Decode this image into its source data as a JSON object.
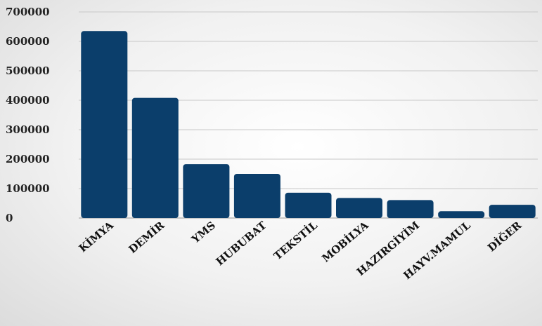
{
  "chart_data": {
    "type": "bar",
    "title": "",
    "xlabel": "",
    "ylabel": "",
    "categories": [
      "KİMYA",
      "DEMİR",
      "YMS",
      "HUBUBAT",
      "TEKSTİL",
      "MOBİLYA",
      "HAZIRGİYİM",
      "HAYV.MAMUL",
      "DİĞER"
    ],
    "values": [
      635000,
      408000,
      183000,
      150000,
      86000,
      68000,
      61000,
      23000,
      45000
    ],
    "ylim": [
      0,
      700000
    ],
    "yticks": [
      "0",
      "100000",
      "200000",
      "300000",
      "400000",
      "500000",
      "600000",
      "700000"
    ],
    "grid": true,
    "legend": "none",
    "bar_color": "#0b3e6b"
  }
}
